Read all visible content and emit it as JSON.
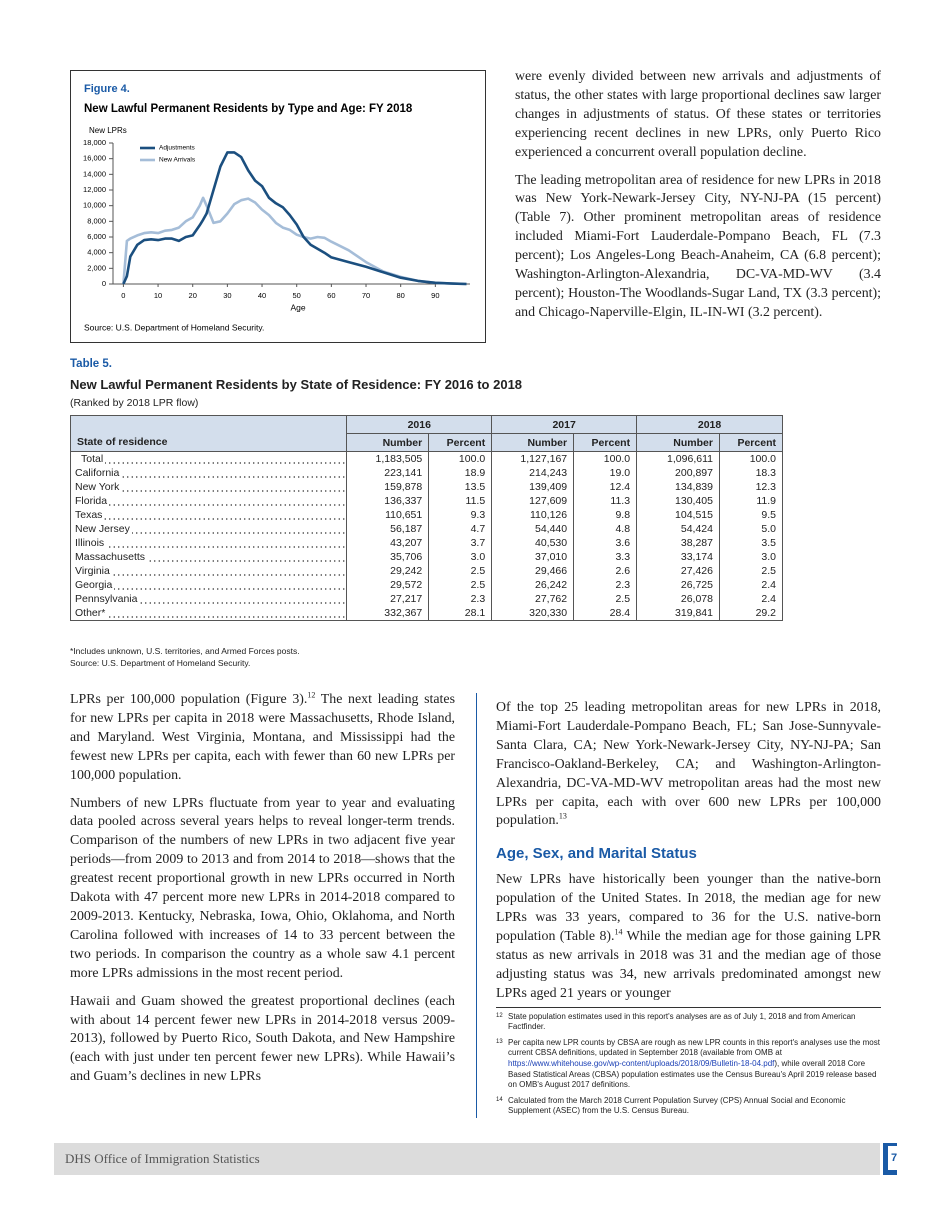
{
  "chart_data": {
    "type": "line",
    "label": "Figure 4.",
    "title": "New Lawful Permanent Residents by Type and Age: FY 2018",
    "y_label": "New LPRs",
    "x_label": "Age",
    "source": "Source: U.S. Department of Homeland Security.",
    "x": [
      0,
      1,
      2,
      4,
      6,
      8,
      10,
      12,
      14,
      16,
      18,
      20,
      22,
      23,
      24,
      26,
      28,
      30,
      32,
      34,
      36,
      38,
      40,
      42,
      44,
      46,
      48,
      50,
      52,
      54,
      56,
      58,
      60,
      65,
      70,
      75,
      80,
      85,
      90,
      95,
      99
    ],
    "series": [
      {
        "name": "Adjustments",
        "color": "#1b4f7f",
        "values": [
          0,
          1000,
          3500,
          5000,
          5600,
          5700,
          5600,
          5800,
          5800,
          5500,
          6000,
          6200,
          7500,
          8200,
          9000,
          12000,
          15000,
          16800,
          16800,
          16200,
          14500,
          13200,
          12500,
          11000,
          10300,
          9800,
          8800,
          7600,
          6000,
          5000,
          4500,
          4000,
          3400,
          2800,
          2200,
          1500,
          800,
          400,
          150,
          50,
          0
        ]
      },
      {
        "name": "New Arrivals",
        "color": "#a5bdd8",
        "values": [
          0,
          5500,
          5800,
          6200,
          6500,
          6600,
          6500,
          6800,
          6900,
          7200,
          8000,
          8500,
          10000,
          11000,
          10000,
          7800,
          8000,
          9000,
          10200,
          10700,
          10900,
          10400,
          9500,
          8800,
          7800,
          7200,
          6900,
          6300,
          6000,
          5800,
          6000,
          5900,
          5400,
          4300,
          2800,
          1600,
          900,
          400,
          150,
          50,
          0
        ]
      }
    ],
    "xlim": [
      -3,
      100
    ],
    "xticks": [
      0,
      10,
      20,
      30,
      40,
      50,
      60,
      70,
      80,
      90
    ],
    "ylim": [
      0,
      18000
    ],
    "yticks": [
      0,
      {
        "value": 2000,
        "label": "2,000"
      },
      {
        "value": 4000,
        "label": "4,000"
      },
      {
        "value": 6000,
        "label": "6,000"
      },
      {
        "value": 8000,
        "label": "8,000"
      },
      {
        "value": 10000,
        "label": "10,000"
      },
      {
        "value": 12000,
        "label": "12,000"
      },
      {
        "value": 14000,
        "label": "14,000"
      },
      {
        "value": 16000,
        "label": "16,000"
      },
      {
        "value": 18000,
        "label": "18,000"
      }
    ]
  },
  "top_right": {
    "paragraphs": [
      {
        "text": "were evenly divided between new arrivals and adjustments of status, the other states with large proportional declines saw larger changes in adjustments of status. Of these states or territories experiencing recent declines in new LPRs, only Puerto Rico experienced a concurrent overall population decline."
      },
      {
        "text": "The leading metropolitan area of residence for new LPRs in 2018 was New York-Newark-Jersey City, NY-NJ-PA (15 percent) (Table 7). Other prominent metropolitan areas of residence included Miami-Fort Lauderdale-Pompano Beach, FL (7.3 percent); Los Angeles-Long Beach-Anaheim, CA (6.8 percent); Washington-Arlington-Alexandria, DC-VA-MD-WV (3.4 percent); Houston-The Woodlands-Sugar Land, TX (3.3 percent); and Chicago-Naperville-Elgin, IL-IN-WI (3.2 percent)."
      }
    ]
  },
  "table": {
    "label": "Table 5.",
    "title": "New Lawful Permanent Residents by State of Residence: FY 2016 to 2018",
    "subtitle": "(Ranked by 2018 LPR flow)",
    "years": [
      "2016",
      "2017",
      "2018"
    ],
    "row_header": "State of residence",
    "number_header": "Number",
    "percent_header": "Percent",
    "rows": [
      [
        "Total",
        "1,183,505",
        "100.0",
        "1,127,167",
        "100.0",
        "1,096,611",
        "100.0"
      ],
      [
        "California",
        "223,141",
        "18.9",
        "214,243",
        "19.0",
        "200,897",
        "18.3"
      ],
      [
        "New York",
        "159,878",
        "13.5",
        "139,409",
        "12.4",
        "134,839",
        "12.3"
      ],
      [
        "Florida",
        "136,337",
        "11.5",
        "127,609",
        "11.3",
        "130,405",
        "11.9"
      ],
      [
        "Texas",
        "110,651",
        "9.3",
        "110,126",
        "9.8",
        "104,515",
        "9.5"
      ],
      [
        "New Jersey",
        "56,187",
        "4.7",
        "54,440",
        "4.8",
        "54,424",
        "5.0"
      ],
      [
        "Illinois",
        "43,207",
        "3.7",
        "40,530",
        "3.6",
        "38,287",
        "3.5"
      ],
      [
        "Massachusetts",
        "35,706",
        "3.0",
        "37,010",
        "3.3",
        "33,174",
        "3.0"
      ],
      [
        "Virginia",
        "29,242",
        "2.5",
        "29,466",
        "2.6",
        "27,426",
        "2.5"
      ],
      [
        "Georgia",
        "29,572",
        "2.5",
        "26,242",
        "2.3",
        "26,725",
        "2.4"
      ],
      [
        "Pennsylvania",
        "27,217",
        "2.3",
        "27,762",
        "2.5",
        "26,078",
        "2.4"
      ],
      [
        "Other*",
        "332,367",
        "28.1",
        "320,330",
        "28.4",
        "319,841",
        "29.2"
      ]
    ],
    "notes": [
      "*Includes unknown, U.S. territories, and Armed Forces posts.",
      "Source: U.S. Department of Homeland Security."
    ]
  },
  "bottom_left": {
    "paragraphs": [
      {
        "text": "LPRs per 100,000 population (Figure 3).",
        "note": "12",
        "after": " The next leading states for new LPRs per capita in 2018 were Massachusetts, Rhode Island, and Maryland. West Virginia, Montana, and Mississippi had the fewest new LPRs per capita, each with fewer than 60 new LPRs per 100,000 population."
      },
      {
        "text": "Numbers of new LPRs fluctuate from year to year and evaluating data pooled across several years helps to reveal longer-term trends. Comparison of the numbers of new LPRs in two adjacent five year periods—from 2009 to 2013 and from 2014 to 2018—shows that the greatest recent proportional growth in new LPRs occurred in North Dakota with 47 percent more new LPRs in 2014-2018 compared to 2009-2013. Kentucky, Nebraska, Iowa, Ohio, Oklahoma, and North Carolina followed with increases of 14 to 33 percent between the two periods. In comparison the country as a whole saw 4.1 percent more LPRs admissions in the most recent period."
      },
      {
        "text": "Hawaii and Guam showed the greatest proportional declines (each with about 14 percent fewer new LPRs in 2014-2018 versus 2009-2013), followed by Puerto Rico, South Dakota, and New Hampshire (each with just under ten percent fewer new LPRs). While Hawaii’s and Guam’s declines in new LPRs"
      }
    ]
  },
  "bottom_right": {
    "paragraphs": [
      {
        "text": "Of the top 25 leading metropolitan areas for new LPRs in 2018, Miami-Fort Lauderdale-Pompano Beach, FL; San Jose-Sunnyvale-Santa Clara, CA; New York-Newark-Jersey City, NY-NJ-PA; San Francisco-Oakland-Berkeley, CA; and Washington-Arlington-Alexandria, DC-VA-MD-WV metropolitan areas had the most new LPRs per capita, each with over 600 new LPRs per 100,000 population.",
        "note": "13"
      }
    ],
    "heading": "Age, Sex, and Marital Status",
    "section_paragraphs": [
      {
        "text": "New LPRs have historically been younger than the native-born population of the United States. In 2018, the median age for new LPRs was 33 years, compared to 36 for the U.S. native-born population (Table 8).",
        "note": "14",
        "after": " While the median age for those gaining LPR status as new arrivals in 2018 was 31 and the median age of those adjusting status was 34, new arrivals predominated amongst new LPRs aged 21 years or younger"
      }
    ]
  },
  "footnotes": [
    {
      "number": "12",
      "text": "State population estimates used in this report's analyses are as of July 1, 2018 and from American Factfinder."
    },
    {
      "number": "13",
      "text": "Per capita new LPR counts by CBSA are rough as new LPR counts in this report's analyses use the most current CBSA definitions, updated in September 2018 (available from OMB at ",
      "link": "https://www.whitehouse.gov/wp-content/uploads/2018/09/Bulletin-18-04.pdf",
      "after": "), while overall 2018 Core Based Statistical Areas (CBSA) population estimates use the Census Bureau's April 2019 release based on OMB's August 2017 definitions."
    },
    {
      "number": "14",
      "text": "Calculated from the March 2018 Current Population Survey (CPS) Annual Social and Economic Supplement (ASEC) from the U.S. Census Bureau."
    }
  ],
  "footer": {
    "text": "DHS Office of Immigration Statistics",
    "page": "7"
  }
}
